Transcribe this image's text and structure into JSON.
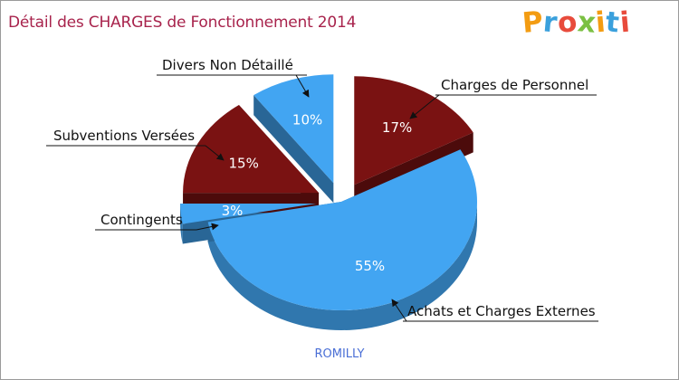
{
  "header": {
    "title": "Détail des CHARGES de Fonctionnement 2014",
    "logo_letters": [
      {
        "ch": "P",
        "color": "#f39c12"
      },
      {
        "ch": "r",
        "color": "#3aa0dc"
      },
      {
        "ch": "o",
        "color": "#e84b3c"
      },
      {
        "ch": "x",
        "color": "#7bc043"
      },
      {
        "ch": "i",
        "color": "#f39c12"
      },
      {
        "ch": "t",
        "color": "#3aa0dc"
      },
      {
        "ch": "i",
        "color": "#e84b3c"
      }
    ]
  },
  "chart_data": {
    "type": "pie",
    "title": "Détail des CHARGES de Fonctionnement 2014",
    "subtitle": "ROMILLY",
    "slices": [
      {
        "name": "Charges de Personnel",
        "value": 17,
        "label": "17%",
        "color": "#7a1212"
      },
      {
        "name": "Achats et Charges Externes",
        "value": 55,
        "label": "55%",
        "color": "#42a5f2"
      },
      {
        "name": "Contingents",
        "value": 3,
        "label": "3%",
        "color": "#42a5f2"
      },
      {
        "name": "Subventions Versées",
        "value": 15,
        "label": "15%",
        "color": "#7a1212"
      },
      {
        "name": "Divers Non Détaillé",
        "value": 10,
        "label": "10%",
        "color": "#42a5f2"
      }
    ]
  }
}
